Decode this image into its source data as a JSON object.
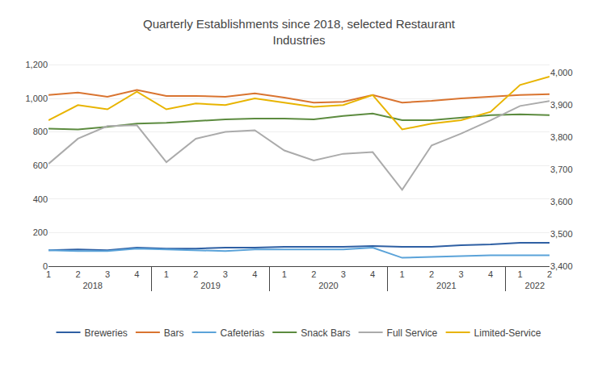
{
  "chart_data": {
    "type": "line",
    "title": "Quarterly Establishments since 2018, selected Restaurant\nIndustries",
    "categories": [
      "1",
      "2",
      "3",
      "4",
      "1",
      "2",
      "3",
      "4",
      "1",
      "2",
      "3",
      "4",
      "1",
      "2",
      "3",
      "4",
      "1",
      "2"
    ],
    "category_groups": [
      "2018",
      "2018",
      "2018",
      "2018",
      "2019",
      "2019",
      "2019",
      "2019",
      "2020",
      "2020",
      "2020",
      "2020",
      "2021",
      "2021",
      "2021",
      "2021",
      "2022",
      "2022"
    ],
    "series": [
      {
        "name": "Breweries",
        "color": "#2E5FA3",
        "values": [
          95,
          100,
          95,
          110,
          105,
          105,
          110,
          110,
          115,
          115,
          115,
          120,
          115,
          115,
          125,
          130,
          140,
          140
        ]
      },
      {
        "name": "Bars",
        "color": "#D97430",
        "values": [
          1020,
          1035,
          1010,
          1050,
          1015,
          1015,
          1010,
          1030,
          1005,
          975,
          980,
          1020,
          975,
          985,
          1000,
          1010,
          1020,
          1025
        ]
      },
      {
        "name": "Cafeterias",
        "color": "#5BA3D9",
        "values": [
          95,
          90,
          90,
          105,
          100,
          95,
          90,
          100,
          100,
          100,
          100,
          110,
          50,
          55,
          60,
          65,
          65,
          65
        ]
      },
      {
        "name": "Snack Bars",
        "color": "#5C8B3F",
        "values": [
          820,
          815,
          830,
          850,
          855,
          865,
          875,
          880,
          880,
          875,
          895,
          910,
          870,
          870,
          885,
          900,
          905,
          900
        ]
      },
      {
        "name": "Full Service",
        "color": "#ABABAB",
        "values": [
          610,
          760,
          835,
          840,
          620,
          760,
          800,
          810,
          690,
          630,
          670,
          680,
          455,
          720,
          790,
          870,
          955,
          985
        ]
      },
      {
        "name": "Limited-Service",
        "color": "#E8B400",
        "values": [
          870,
          960,
          935,
          1040,
          935,
          970,
          960,
          1000,
          975,
          950,
          960,
          1020,
          815,
          850,
          870,
          920,
          1080,
          1130
        ]
      }
    ],
    "ylim": [
      0,
      1250
    ],
    "yticks": [
      0,
      200,
      400,
      600,
      800,
      {
        "value": 1000,
        "label": "1,000"
      },
      {
        "value": 1200,
        "label": "1,200"
      }
    ],
    "y2lim": [
      3400,
      4050
    ],
    "y2ticks": [
      {
        "value": 3400,
        "label": "3,400"
      },
      {
        "value": 3500,
        "label": "3,500"
      },
      {
        "value": 3600,
        "label": "3,600"
      },
      {
        "value": 3700,
        "label": "3,700"
      },
      {
        "value": 3800,
        "label": "3,800"
      },
      {
        "value": 3900,
        "label": "3,900"
      },
      {
        "value": 4000,
        "label": "4,000"
      }
    ],
    "grid": true,
    "legend": "bottom"
  }
}
